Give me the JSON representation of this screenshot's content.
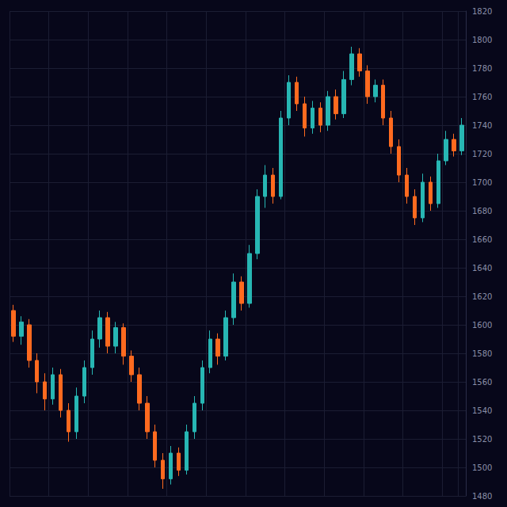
{
  "chart_data": {
    "type": "candlestick",
    "categories": [
      null,
      null,
      null,
      null,
      null,
      null,
      null,
      null,
      null,
      null,
      null,
      null,
      null,
      null,
      null,
      null,
      null,
      null,
      null,
      null,
      null,
      null,
      null,
      null,
      null,
      null,
      null,
      null,
      null,
      null,
      null,
      null,
      null,
      null,
      null,
      null,
      null,
      null,
      null,
      null,
      null,
      null,
      null,
      null,
      null,
      null,
      null,
      null,
      null,
      null,
      null,
      null,
      null,
      null,
      null,
      null,
      null,
      null
    ],
    "open": [
      1610,
      1592,
      1600,
      1575,
      1560,
      1548,
      1565,
      1540,
      1525,
      1550,
      1570,
      1590,
      1605,
      1585,
      1598,
      1578,
      1565,
      1545,
      1525,
      1505,
      1492,
      1510,
      1498,
      1525,
      1545,
      1570,
      1590,
      1578,
      1605,
      1630,
      1615,
      1650,
      1690,
      1705,
      1690,
      1745,
      1770,
      1755,
      1738,
      1752,
      1740,
      1760,
      1748,
      1772,
      1790,
      1778,
      1760,
      1768,
      1745,
      1725,
      1705,
      1690,
      1675,
      1700,
      1685,
      1715,
      1730,
      1722
    ],
    "close": [
      1592,
      1602,
      1575,
      1560,
      1548,
      1565,
      1540,
      1525,
      1550,
      1570,
      1590,
      1605,
      1585,
      1598,
      1578,
      1565,
      1545,
      1525,
      1505,
      1492,
      1510,
      1498,
      1525,
      1545,
      1570,
      1590,
      1578,
      1605,
      1630,
      1615,
      1650,
      1690,
      1705,
      1690,
      1745,
      1770,
      1755,
      1738,
      1752,
      1740,
      1760,
      1748,
      1772,
      1790,
      1778,
      1760,
      1768,
      1745,
      1725,
      1705,
      1690,
      1675,
      1700,
      1685,
      1715,
      1730,
      1722,
      1740
    ],
    "low": [
      1588,
      1586,
      1570,
      1552,
      1540,
      1544,
      1535,
      1518,
      1520,
      1545,
      1565,
      1584,
      1580,
      1580,
      1572,
      1560,
      1540,
      1520,
      1500,
      1485,
      1488,
      1494,
      1495,
      1520,
      1540,
      1566,
      1572,
      1575,
      1600,
      1610,
      1612,
      1646,
      1682,
      1685,
      1688,
      1740,
      1750,
      1732,
      1734,
      1735,
      1736,
      1744,
      1745,
      1768,
      1774,
      1755,
      1756,
      1740,
      1720,
      1700,
      1685,
      1670,
      1672,
      1680,
      1682,
      1712,
      1718,
      1719
    ],
    "high": [
      1614,
      1606,
      1604,
      1580,
      1566,
      1570,
      1569,
      1545,
      1556,
      1575,
      1596,
      1610,
      1609,
      1602,
      1601,
      1582,
      1570,
      1550,
      1530,
      1510,
      1515,
      1514,
      1530,
      1550,
      1575,
      1596,
      1594,
      1610,
      1636,
      1634,
      1656,
      1695,
      1712,
      1710,
      1750,
      1775,
      1774,
      1760,
      1757,
      1756,
      1764,
      1765,
      1778,
      1795,
      1794,
      1782,
      1772,
      1772,
      1750,
      1730,
      1710,
      1695,
      1706,
      1704,
      1720,
      1736,
      1734,
      1745
    ],
    "ylim": [
      1480,
      1820
    ],
    "yticks": [
      1480,
      1500,
      1520,
      1540,
      1560,
      1580,
      1600,
      1620,
      1640,
      1660,
      1680,
      1700,
      1720,
      1740,
      1760,
      1780,
      1800,
      1820
    ],
    "grid": true,
    "tick_labels": "y"
  }
}
